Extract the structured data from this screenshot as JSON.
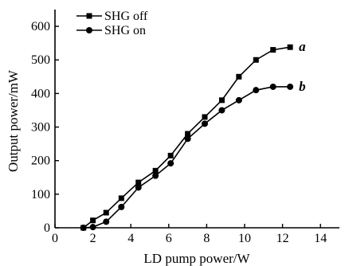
{
  "chart_data": {
    "type": "line",
    "xlabel": "LD pump power/W",
    "ylabel": "Output power/mW",
    "xlim": [
      0,
      15
    ],
    "ylim": [
      0,
      650
    ],
    "xticks": [
      0,
      2,
      4,
      6,
      8,
      10,
      12,
      14
    ],
    "yticks": [
      0,
      100,
      200,
      300,
      400,
      500,
      600
    ],
    "grid": false,
    "legend_position": "top-left",
    "series": [
      {
        "name": "SHG off",
        "tag": "a",
        "marker": "square",
        "x": [
          1.5,
          2.0,
          2.7,
          3.5,
          4.4,
          5.3,
          6.1,
          7.0,
          7.9,
          8.8,
          9.7,
          10.6,
          11.5,
          12.4
        ],
        "y": [
          0,
          22,
          45,
          88,
          135,
          170,
          215,
          280,
          330,
          380,
          450,
          500,
          530,
          538
        ]
      },
      {
        "name": "SHG on",
        "tag": "b",
        "marker": "circle",
        "x": [
          1.5,
          2.0,
          2.7,
          3.5,
          4.4,
          5.3,
          6.1,
          7.0,
          7.9,
          8.8,
          9.7,
          10.6,
          11.5,
          12.4
        ],
        "y": [
          0,
          2,
          18,
          62,
          120,
          155,
          192,
          265,
          310,
          350,
          380,
          410,
          420,
          420
        ]
      }
    ]
  }
}
